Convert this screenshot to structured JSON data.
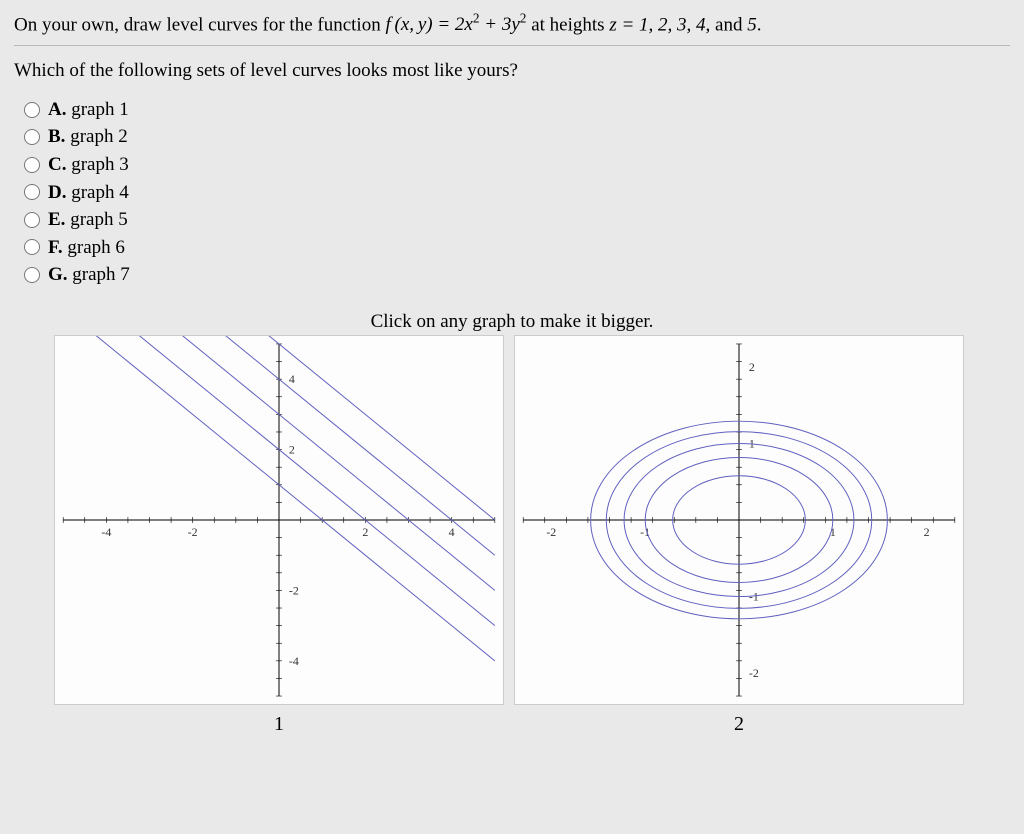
{
  "prompt": {
    "pre": "On your own, draw level curves for the function ",
    "mid": " at heights ",
    "post": "."
  },
  "function_tex": "f (x, y) = 2x² + 3y²",
  "heights_tex": "z = 1, 2, 3, 4, ",
  "and_word": "and ",
  "heights_last": "5",
  "question": "Which of the following sets of level curves looks most like yours?",
  "options": [
    {
      "letter": "A.",
      "label": "graph 1"
    },
    {
      "letter": "B.",
      "label": "graph 2"
    },
    {
      "letter": "C.",
      "label": "graph 3"
    },
    {
      "letter": "D.",
      "label": "graph 4"
    },
    {
      "letter": "E.",
      "label": "graph 5"
    },
    {
      "letter": "F.",
      "label": "graph 6"
    },
    {
      "letter": "G.",
      "label": "graph 7"
    }
  ],
  "instruction": "Click on any graph to make it bigger.",
  "graph1": {
    "number": "1",
    "type": "line",
    "xlim": [
      -5,
      5
    ],
    "ylim": [
      -5,
      5
    ],
    "xticks": [
      -4,
      -2,
      2,
      4
    ],
    "yticks": [
      -4,
      -2,
      2,
      4
    ],
    "line_color": "#6060c0",
    "axis_color": "#000000",
    "background": "#fdfdfd",
    "lines_intercept_x": [
      0.5,
      1.0,
      1.5,
      2.0,
      2.5
    ],
    "slope": -1
  },
  "graph2": {
    "number": "2",
    "type": "ellipses",
    "xlim": [
      -2.3,
      2.3
    ],
    "ylim": [
      -2.3,
      2.3
    ],
    "xticks": [
      -2,
      -1,
      1,
      2
    ],
    "yticks": [
      -2,
      -1,
      1,
      2
    ],
    "curve_color": "#6060c0",
    "axis_color": "#000000",
    "background": "#fdfdfd",
    "z_values": [
      1,
      2,
      3,
      4,
      5
    ],
    "coef_x": 2,
    "coef_y": 3
  }
}
